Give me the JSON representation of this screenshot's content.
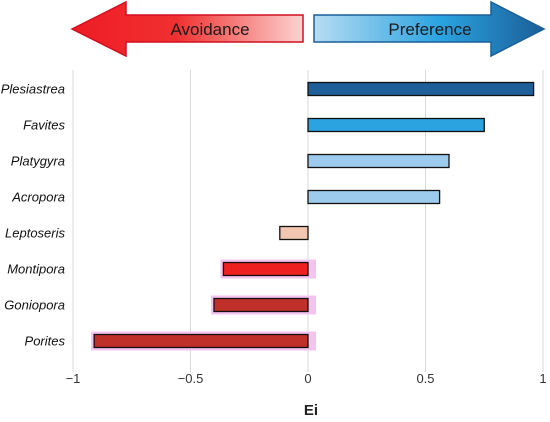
{
  "chart_data": {
    "type": "bar",
    "orientation": "horizontal",
    "categories": [
      "Plesiastrea",
      "Favites",
      "Platygyra",
      "Acropora",
      "Leptoseris",
      "Montipora",
      "Goniopora",
      "Porites"
    ],
    "values": [
      0.96,
      0.75,
      0.6,
      0.56,
      -0.12,
      -0.36,
      -0.4,
      -0.91
    ],
    "bar_colors": [
      "#1f5f99",
      "#2aa3e0",
      "#9ccbee",
      "#9ccbee",
      "#f2c6b0",
      "#ee2020",
      "#c0302a",
      "#c0302a"
    ],
    "xlabel": "Ei",
    "xlim": [
      -1,
      1
    ],
    "xticks": [
      -1,
      -0.5,
      0,
      0.5,
      1
    ],
    "xtick_labels": [
      "−1",
      "−0.5",
      "0",
      "0.5",
      "1"
    ],
    "grid": "vertical",
    "arrows": {
      "left": {
        "label": "Avoidance",
        "color": "#ee1c25"
      },
      "right": {
        "label": "Preference",
        "color": "#1a7fc8"
      }
    }
  }
}
